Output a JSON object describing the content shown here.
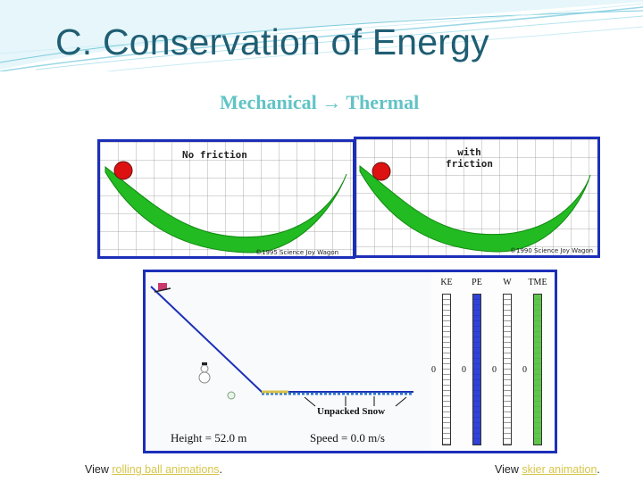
{
  "slide": {
    "title": "C. Conservation of Energy",
    "subtitle": "Mechanical → Thermal",
    "colors": {
      "title": "#1f5e73",
      "subtitle": "#62c3c6",
      "panel_border": "#1c2fb8",
      "bowl": "#22bb22",
      "ball": "#dd1111",
      "link": "#d6c64a"
    }
  },
  "panels": {
    "no_friction": {
      "label": "No friction",
      "copyright": "©1995 Science Joy Wagon"
    },
    "friction": {
      "label": "with\nfriction",
      "copyright": "©1990 Science Joy Wagon"
    }
  },
  "skier": {
    "height_label": "Height = 52.0 m",
    "speed_label": "Speed = 0.0 m/s",
    "snow_label": "Unpacked Snow",
    "bars": [
      {
        "name": "KE",
        "zero": "0",
        "fill_fraction": 0,
        "color": "#ffffff"
      },
      {
        "name": "PE",
        "zero": "0",
        "fill_fraction": 1,
        "color": "#1a2fd0"
      },
      {
        "name": "W",
        "zero": "0",
        "fill_fraction": 0,
        "color": "#ffffff"
      },
      {
        "name": "TME",
        "zero": "0",
        "fill_fraction": 1,
        "color": "#4fbf3a"
      }
    ]
  },
  "footer": {
    "left": {
      "prefix": "View ",
      "link": "rolling ball animations",
      "suffix": "."
    },
    "right": {
      "prefix": "View ",
      "link": "skier animation",
      "suffix": "."
    }
  }
}
